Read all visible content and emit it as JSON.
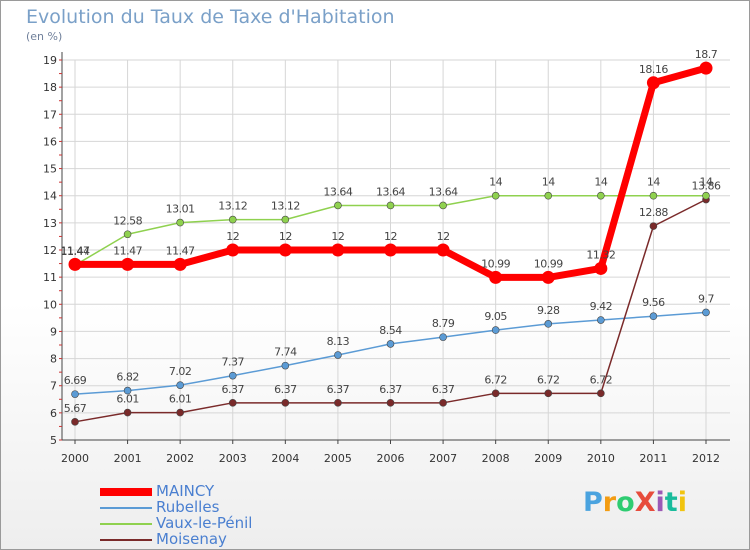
{
  "chart_data": {
    "type": "line",
    "title": "Evolution du Taux de Taxe d'Habitation",
    "subtitle": "(en %)",
    "xlabel": "",
    "ylabel": "",
    "x": [
      "2000",
      "2001",
      "2002",
      "2003",
      "2004",
      "2005",
      "2006",
      "2007",
      "2008",
      "2009",
      "2010",
      "2011",
      "2012"
    ],
    "ylim": [
      5,
      19
    ],
    "yticks": [
      5,
      6,
      7,
      8,
      9,
      10,
      11,
      12,
      13,
      14,
      15,
      16,
      17,
      18,
      19
    ],
    "grid": true,
    "legend": "bottom-left",
    "series": [
      {
        "name": "MAINCY",
        "color": "#ff0000",
        "values": [
          11.47,
          11.47,
          11.47,
          12,
          12,
          12,
          12,
          12,
          10.99,
          10.99,
          11.32,
          18.16,
          18.7
        ],
        "labels": [
          "11.47",
          "11.47",
          "11.47",
          "12",
          "12",
          "12",
          "12",
          "12",
          "10.99",
          "10.99",
          "11.32",
          "18.16",
          "18.7"
        ]
      },
      {
        "name": "Rubelles",
        "color": "#5b9bd5",
        "values": [
          6.69,
          6.82,
          7.02,
          7.37,
          7.74,
          8.13,
          8.54,
          8.79,
          9.05,
          9.28,
          9.42,
          9.56,
          9.7
        ],
        "labels": [
          "6.69",
          "6.82",
          "7.02",
          "7.37",
          "7.74",
          "8.13",
          "8.54",
          "8.79",
          "9.05",
          "9.28",
          "9.42",
          "9.56",
          "9.7"
        ]
      },
      {
        "name": "Vaux-le-Pénil",
        "color": "#8fd14f",
        "values": [
          11.44,
          12.58,
          13.01,
          13.12,
          13.12,
          13.64,
          13.64,
          13.64,
          14,
          14,
          14,
          14,
          14
        ],
        "labels": [
          "11.44",
          "12.58",
          "13.01",
          "13.12",
          "13.12",
          "13.64",
          "13.64",
          "13.64",
          "14",
          "14",
          "14",
          "14",
          "14"
        ]
      },
      {
        "name": "Moisenay",
        "color": "#7a2a2a",
        "values": [
          5.67,
          6.01,
          6.01,
          6.37,
          6.37,
          6.37,
          6.37,
          6.37,
          6.72,
          6.72,
          6.72,
          12.88,
          13.86
        ],
        "labels": [
          "5.67",
          "6.01",
          "6.01",
          "6.37",
          "6.37",
          "6.37",
          "6.37",
          "6.37",
          "6.72",
          "6.72",
          "6.72",
          "12.88",
          "13.86"
        ]
      }
    ]
  },
  "logo": {
    "text": "ProXiti",
    "colors": [
      "#4aa3df",
      "#f39c12",
      "#2ecc71",
      "#e74c3c",
      "#9b59b6",
      "#1abc9c",
      "#f1c40f"
    ]
  }
}
